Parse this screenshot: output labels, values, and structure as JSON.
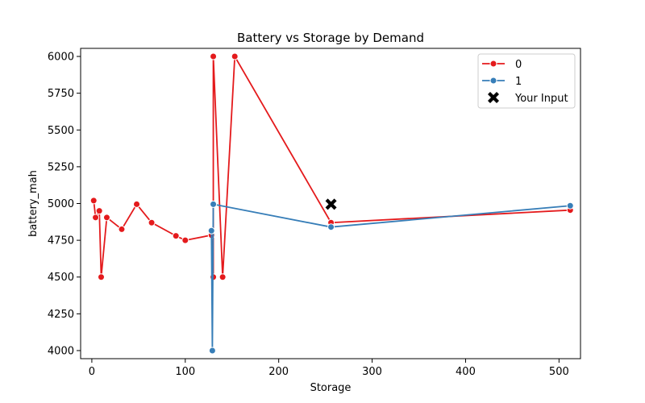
{
  "chart_data": {
    "type": "line",
    "title": "Battery vs Storage by Demand",
    "xlabel": "Storage",
    "ylabel": "battery_mah",
    "xlim": [
      -12,
      523
    ],
    "ylim": [
      3945,
      6055
    ],
    "xticks": [
      0,
      100,
      200,
      300,
      400,
      500
    ],
    "yticks": [
      4000,
      4250,
      4500,
      4750,
      5000,
      5250,
      5500,
      5750,
      6000
    ],
    "grid": false,
    "legend_position": "top-right",
    "series": [
      {
        "name": "0",
        "color": "#e41a1c",
        "points": [
          {
            "x": 2,
            "y": 5020
          },
          {
            "x": 4,
            "y": 4905
          },
          {
            "x": 8,
            "y": 4950
          },
          {
            "x": 10,
            "y": 4500
          },
          {
            "x": 16,
            "y": 4905
          },
          {
            "x": 32,
            "y": 4825
          },
          {
            "x": 48,
            "y": 4995
          },
          {
            "x": 64,
            "y": 4870
          },
          {
            "x": 90,
            "y": 4780
          },
          {
            "x": 100,
            "y": 4750
          },
          {
            "x": 128,
            "y": 4785
          },
          {
            "x": 130,
            "y": 4500
          },
          {
            "x": 130,
            "y": 6000
          },
          {
            "x": 140,
            "y": 4500
          },
          {
            "x": 153,
            "y": 6000
          },
          {
            "x": 256,
            "y": 4870
          },
          {
            "x": 512,
            "y": 4955
          }
        ]
      },
      {
        "name": "1",
        "color": "#377eb8",
        "points": [
          {
            "x": 128,
            "y": 4815
          },
          {
            "x": 129,
            "y": 4000
          },
          {
            "x": 130,
            "y": 4995
          },
          {
            "x": 256,
            "y": 4840
          },
          {
            "x": 512,
            "y": 4985
          }
        ]
      }
    ],
    "highlight": {
      "name": "Your Input",
      "x": 256,
      "y": 4995,
      "marker": "X",
      "color": "#000000"
    }
  }
}
